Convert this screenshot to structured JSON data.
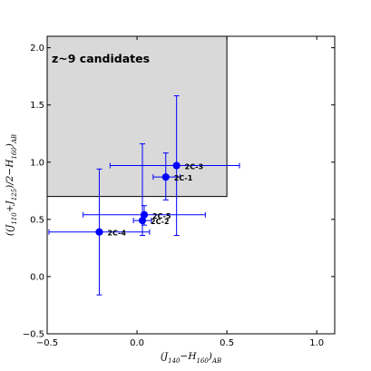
{
  "chart_data": {
    "type": "scatter",
    "title": "",
    "xlabel": "(J_{140}−H_{160})_{AB}",
    "ylabel": "((J_{110}+J_{125})/2−H_{160})_{AB}",
    "xlim": [
      -0.5,
      1.1
    ],
    "ylim": [
      -0.5,
      2.1
    ],
    "xticks": [
      -0.5,
      0.0,
      0.5,
      1.0
    ],
    "yticks": [
      -0.5,
      0.0,
      0.5,
      1.0,
      1.5,
      2.0
    ],
    "xtick_labels": [
      "−0.5",
      "0.0",
      "0.5",
      "1.0"
    ],
    "ytick_labels": [
      "−0.5",
      "0.0",
      "0.5",
      "1.0",
      "1.5",
      "2.0"
    ],
    "grid": false,
    "marker_color": "#0000ff",
    "region": {
      "label": "z~9 candidates",
      "x_max": 0.5,
      "y_min": 0.7,
      "fill": "#d9d9d9"
    },
    "points": [
      {
        "name": "2C-3",
        "x": 0.22,
        "y": 0.97,
        "xerr": [
          0.37,
          0.35
        ],
        "yerr": [
          0.61,
          0.61
        ]
      },
      {
        "name": "2C-1",
        "x": 0.16,
        "y": 0.87,
        "xerr": [
          0.07,
          0.08
        ],
        "yerr": [
          0.2,
          0.21
        ]
      },
      {
        "name": "2C-5",
        "x": 0.04,
        "y": 0.54,
        "xerr": [
          0.34,
          0.34
        ],
        "yerr": [
          0.09,
          0.08
        ]
      },
      {
        "name": "2C-2",
        "x": 0.03,
        "y": 0.49,
        "xerr": [
          0.05,
          0.05
        ],
        "yerr": [
          0.13,
          0.67
        ]
      },
      {
        "name": "2C-4",
        "x": -0.21,
        "y": 0.39,
        "xerr": [
          0.28,
          0.28
        ],
        "yerr": [
          0.55,
          0.55
        ]
      }
    ]
  }
}
